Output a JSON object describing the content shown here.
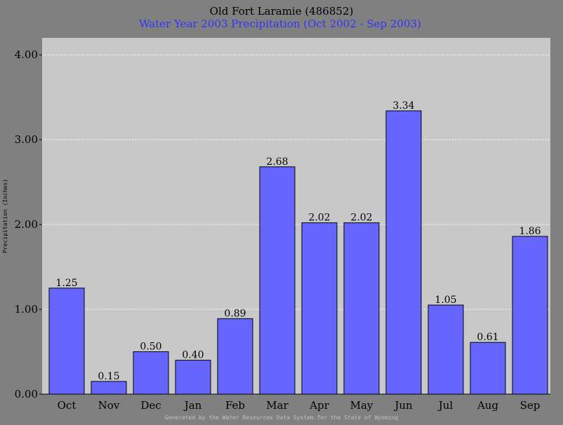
{
  "colors": {
    "outer_background": "#808080",
    "plot_background": "#c8c8c8",
    "bar_fill": "#6666ff",
    "bar_stroke": "#000000",
    "grid": "#ffffff",
    "subtitle": "#3333ff",
    "footer_text": "#c0c0c0"
  },
  "footer": "Generated by the Water Resources Data System for the State of Wyoming",
  "chart_data": {
    "type": "bar",
    "title": "Old Fort Laramie (486852)",
    "subtitle": "Water Year 2003 Precipitation (Oct 2002 - Sep 2003)",
    "xlabel": "",
    "ylabel": "Precipitation (Inches)",
    "ylim": [
      0,
      4.2
    ],
    "yticks": [
      0,
      1,
      2,
      3,
      4
    ],
    "ytick_labels": [
      "0.00",
      "1.00",
      "2.00",
      "3.00",
      "4.00"
    ],
    "grid": true,
    "categories": [
      "Oct",
      "Nov",
      "Dec",
      "Jan",
      "Feb",
      "Mar",
      "Apr",
      "May",
      "Jun",
      "Jul",
      "Aug",
      "Sep"
    ],
    "values": [
      1.25,
      0.15,
      0.5,
      0.4,
      0.89,
      2.68,
      2.02,
      2.02,
      3.34,
      1.05,
      0.61,
      1.86
    ],
    "value_labels": [
      "1.25",
      "0.15",
      "0.50",
      "0.40",
      "0.89",
      "2.68",
      "2.02",
      "2.02",
      "3.34",
      "1.05",
      "0.61",
      "1.86"
    ]
  }
}
